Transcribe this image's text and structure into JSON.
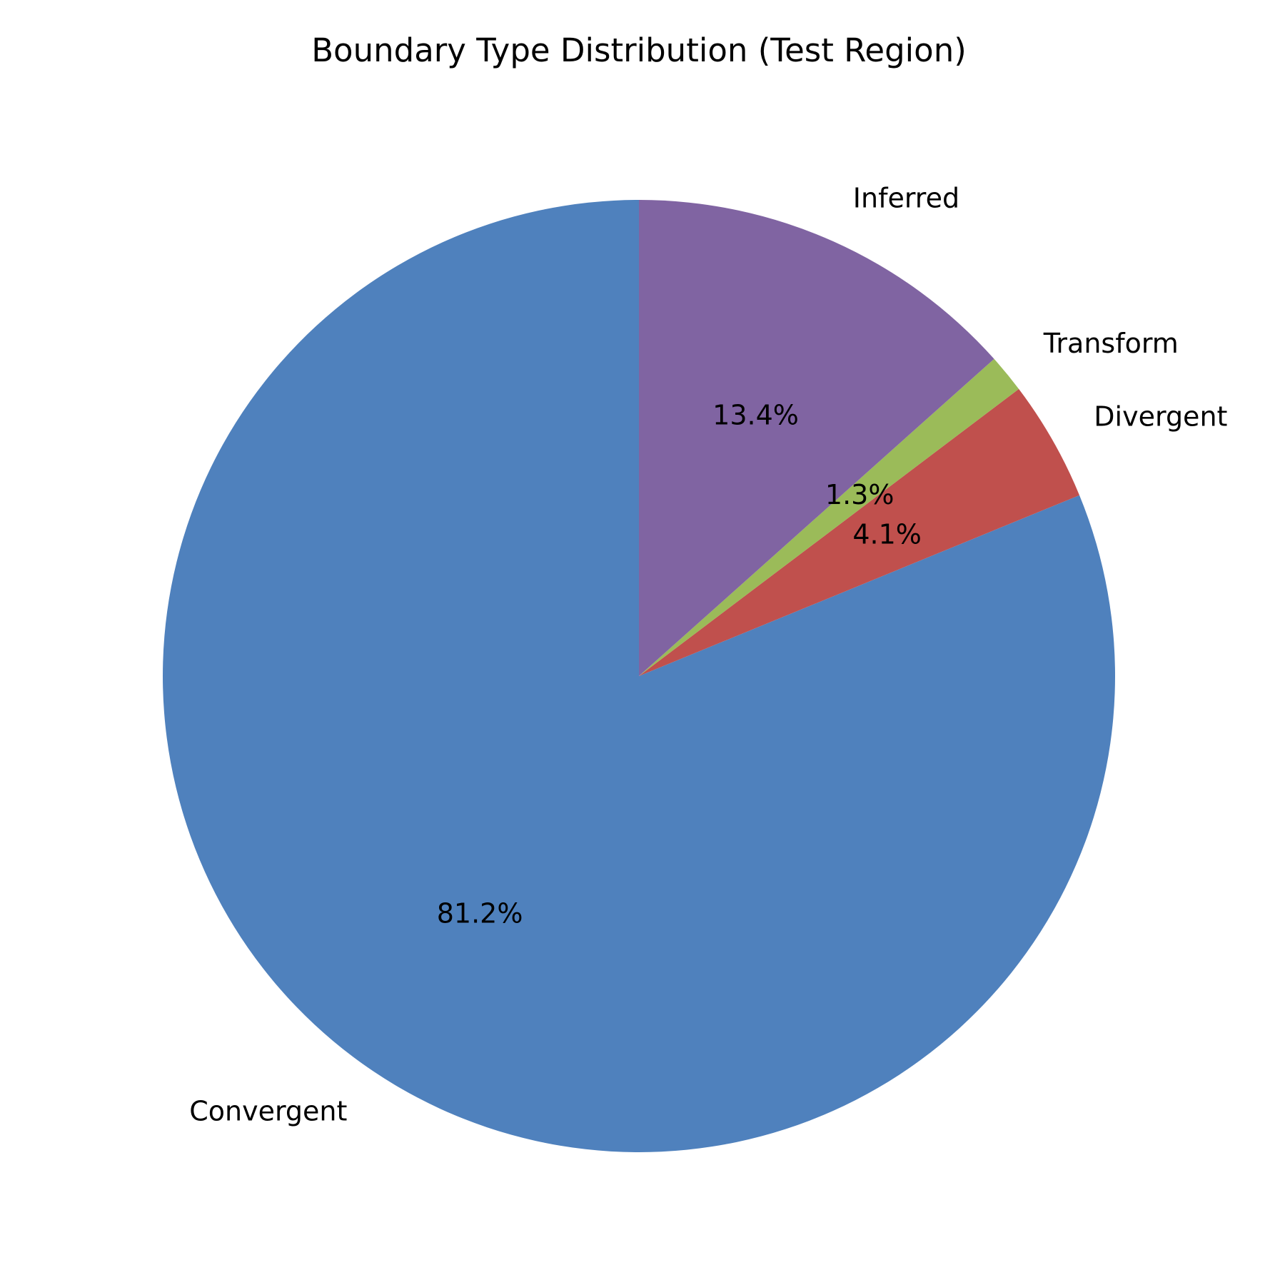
{
  "chart_data": {
    "type": "pie",
    "title": "Boundary Type Distribution (Test Region)",
    "start_angle_deg": 90,
    "direction": "counterclockwise",
    "slices": [
      {
        "label": "Convergent",
        "value": 81.2,
        "pct_label": "81.2%",
        "color": "#4f81bd"
      },
      {
        "label": "Divergent",
        "value": 4.1,
        "pct_label": "4.1%",
        "color": "#c0504d"
      },
      {
        "label": "Transform",
        "value": 1.3,
        "pct_label": "1.3%",
        "color": "#9bbb59"
      },
      {
        "label": "Inferred",
        "value": 13.4,
        "pct_label": "13.4%",
        "color": "#8064a2"
      }
    ]
  }
}
